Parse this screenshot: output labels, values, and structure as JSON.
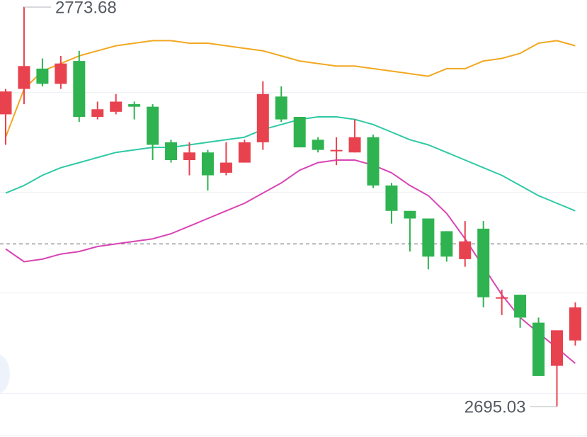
{
  "chart_data": {
    "type": "candlestick",
    "max_label": "2773.68",
    "min_label": "2695.03",
    "current_price_line": {
      "value": 2727.0,
      "style": "dashed"
    },
    "ylim": [
      2689.0,
      2775.0
    ],
    "grid": true,
    "candles": [
      {
        "open": 2752.5,
        "close": 2757.0,
        "high": 2757.5,
        "low": 2746.5
      },
      {
        "open": 2757.5,
        "close": 2762.0,
        "high": 2773.68,
        "low": 2754.5
      },
      {
        "open": 2761.5,
        "close": 2758.5,
        "high": 2763.5,
        "low": 2758.0
      },
      {
        "open": 2758.5,
        "close": 2762.5,
        "high": 2764.0,
        "low": 2757.5
      },
      {
        "open": 2763.0,
        "close": 2752.0,
        "high": 2765.0,
        "low": 2751.0
      },
      {
        "open": 2752.0,
        "close": 2753.5,
        "high": 2755.0,
        "low": 2751.5
      },
      {
        "open": 2753.0,
        "close": 2755.0,
        "high": 2756.5,
        "low": 2752.5
      },
      {
        "open": 2754.5,
        "close": 2754.0,
        "high": 2755.0,
        "low": 2751.5
      },
      {
        "open": 2754.0,
        "close": 2746.5,
        "high": 2754.5,
        "low": 2743.5
      },
      {
        "open": 2747.0,
        "close": 2743.5,
        "high": 2747.5,
        "low": 2743.0
      },
      {
        "open": 2743.5,
        "close": 2745.0,
        "high": 2747.0,
        "low": 2740.5
      },
      {
        "open": 2745.0,
        "close": 2740.5,
        "high": 2745.5,
        "low": 2737.5
      },
      {
        "open": 2741.0,
        "close": 2743.0,
        "high": 2747.0,
        "low": 2740.5
      },
      {
        "open": 2743.0,
        "close": 2747.0,
        "high": 2747.5,
        "low": 2743.0
      },
      {
        "open": 2747.0,
        "close": 2756.5,
        "high": 2759.0,
        "low": 2745.5
      },
      {
        "open": 2756.0,
        "close": 2751.5,
        "high": 2758.0,
        "low": 2751.0
      },
      {
        "open": 2752.0,
        "close": 2746.0,
        "high": 2752.0,
        "low": 2746.0
      },
      {
        "open": 2747.5,
        "close": 2745.5,
        "high": 2748.0,
        "low": 2745.0
      },
      {
        "open": 2745.5,
        "close": 2745.5,
        "high": 2748.0,
        "low": 2742.5
      },
      {
        "open": 2745.0,
        "close": 2748.0,
        "high": 2751.5,
        "low": 2745.0
      },
      {
        "open": 2748.0,
        "close": 2738.5,
        "high": 2748.5,
        "low": 2738.0
      },
      {
        "open": 2738.5,
        "close": 2733.5,
        "high": 2739.0,
        "low": 2731.0
      },
      {
        "open": 2733.5,
        "close": 2732.0,
        "high": 2733.5,
        "low": 2725.5
      },
      {
        "open": 2732.0,
        "close": 2724.5,
        "high": 2732.0,
        "low": 2722.0
      },
      {
        "open": 2729.5,
        "close": 2724.5,
        "high": 2729.5,
        "low": 2723.5
      },
      {
        "open": 2724.0,
        "close": 2727.5,
        "high": 2731.5,
        "low": 2722.5
      },
      {
        "open": 2730.0,
        "close": 2716.5,
        "high": 2731.5,
        "low": 2714.5
      },
      {
        "open": 2716.5,
        "close": 2716.5,
        "high": 2718.0,
        "low": 2713.0
      },
      {
        "open": 2717.0,
        "close": 2712.5,
        "high": 2717.0,
        "low": 2710.5
      },
      {
        "open": 2711.5,
        "close": 2701.0,
        "high": 2712.5,
        "low": 2701.0
      },
      {
        "open": 2703.0,
        "close": 2710.0,
        "high": 2710.0,
        "low": 2695.03
      },
      {
        "open": 2708.0,
        "close": 2714.5,
        "high": 2715.5,
        "low": 2707.0
      }
    ],
    "bands": [
      {
        "color": "#f2a821",
        "values": [
          2748.0,
          2757.5,
          2761.0,
          2762.5,
          2764.0,
          2765.0,
          2766.0,
          2766.5,
          2767.0,
          2767.0,
          2766.5,
          2766.5,
          2766.0,
          2765.5,
          2765.0,
          2764.0,
          2763.0,
          2762.5,
          2762.0,
          2762.0,
          2761.5,
          2761.0,
          2760.5,
          2760.0,
          2761.5,
          2761.5,
          2763.0,
          2763.5,
          2764.5,
          2766.5,
          2767.0,
          2766.0
        ]
      },
      {
        "color": "#2fc9a4",
        "values": [
          2737.0,
          2738.5,
          2740.5,
          2742.0,
          2743.0,
          2744.0,
          2745.0,
          2745.5,
          2746.0,
          2746.0,
          2746.5,
          2747.0,
          2747.5,
          2748.0,
          2749.5,
          2750.5,
          2751.5,
          2752.0,
          2752.0,
          2751.5,
          2750.5,
          2749.0,
          2747.5,
          2746.5,
          2745.0,
          2743.5,
          2742.0,
          2740.5,
          2738.5,
          2736.5,
          2735.0,
          2733.5
        ]
      },
      {
        "color": "#d845b5",
        "values": [
          2726.0,
          2723.5,
          2724.0,
          2725.0,
          2725.5,
          2726.5,
          2727.0,
          2727.5,
          2728.0,
          2729.0,
          2730.5,
          2732.0,
          2733.5,
          2735.0,
          2737.0,
          2739.0,
          2741.5,
          2743.0,
          2743.5,
          2743.5,
          2742.5,
          2741.0,
          2738.5,
          2736.5,
          2733.0,
          2728.0,
          2722.5,
          2717.0,
          2712.5,
          2709.5,
          2706.5,
          2703.5
        ]
      }
    ],
    "colors": {
      "up": "#e8424f",
      "down": "#2fb350",
      "grid": "#eef1f5",
      "dashed": "#7a7d83",
      "label": "#555a62",
      "leader": "#b0b3b8"
    }
  }
}
